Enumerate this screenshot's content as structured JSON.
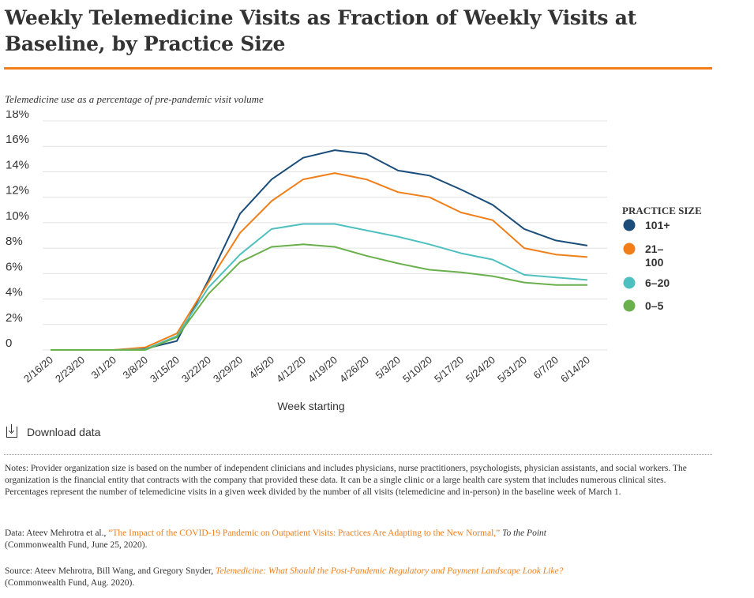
{
  "title": "Weekly Telemedicine Visits as Fraction of Weekly Visits at Baseline, by Practice Size",
  "download_label": "Download data",
  "notes": {
    "text": "Notes: Provider organization size is based on the number of independent clinicians and includes physicians, nurse practitioners, psychologists, physician assistants, and social workers. The organization is the financial entity that contracts with the company that provided these data. It can be a single clinic or a large health care system that includes numerous clinical sites. Percentages represent the number of telemedicine visits in a given week divided by the number of all visits (telemedicine and in-person) in the baseline week of March 1."
  },
  "data_source": {
    "prefix": "Data: Ateev Mehrotra et al., ",
    "link": "“The Impact of the COVID-19 Pandemic on Outpatient Visits: Practices Are Adapting to the New Normal,”",
    "publication": "To the Point",
    "suffix": "(Commonwealth Fund, June 25, 2020)."
  },
  "source": {
    "prefix": "Source: Ateev Mehrotra, Bill Wang, and Gregory Snyder, ",
    "link": "Telemedicine: What Should the Post-Pandemic Regulatory and Payment Landscape Look Like?",
    "suffix": "(Commonwealth Fund, Aug. 2020)."
  },
  "chart_data": {
    "type": "line",
    "subtitle": "Telemedicine use as a percentage of pre-pandemic visit volume",
    "xlabel": "Week starting",
    "ylabel": "",
    "ylim": [
      0,
      18
    ],
    "yticks": [
      0,
      2,
      4,
      6,
      8,
      10,
      12,
      14,
      16,
      18
    ],
    "ytick_labels": [
      "0",
      "2%",
      "4%",
      "6%",
      "8%",
      "10%",
      "12%",
      "14%",
      "16%",
      "18%"
    ],
    "grid": true,
    "legend_title": "PRACTICE SIZE",
    "legend_position": "right",
    "x": [
      "2/16/20",
      "2/23/20",
      "3/1/20",
      "3/8/20",
      "3/15/20",
      "3/22/20",
      "3/29/20",
      "4/5/20",
      "4/12/20",
      "4/19/20",
      "4/26/20",
      "5/3/20",
      "5/10/20",
      "5/17/20",
      "5/24/20",
      "5/31/20",
      "6/7/20",
      "6/14/20"
    ],
    "series": [
      {
        "name": "101+",
        "color": "#1a4d7a",
        "values": [
          0,
          0,
          0,
          0.1,
          0.7,
          5.5,
          10.7,
          13.4,
          15.1,
          15.7,
          15.4,
          14.1,
          13.7,
          12.6,
          11.4,
          9.5,
          8.6,
          8.2
        ]
      },
      {
        "name": "21–100",
        "color": "#f07f1a",
        "values": [
          0,
          0,
          0,
          0.2,
          1.3,
          5.3,
          9.2,
          11.7,
          13.4,
          13.9,
          13.4,
          12.4,
          12.0,
          10.8,
          10.2,
          8.0,
          7.5,
          7.3
        ]
      },
      {
        "name": "6–20",
        "color": "#4fc0c0",
        "values": [
          0,
          0,
          0,
          0.05,
          1.1,
          4.9,
          7.5,
          9.5,
          9.9,
          9.9,
          9.4,
          8.9,
          8.3,
          7.6,
          7.1,
          5.9,
          5.7,
          5.5
        ]
      },
      {
        "name": "0–5",
        "color": "#6ab04c",
        "values": [
          0,
          0,
          0,
          0,
          1.0,
          4.4,
          6.9,
          8.1,
          8.3,
          8.1,
          7.4,
          6.8,
          6.3,
          6.1,
          5.8,
          5.3,
          5.1,
          5.1
        ]
      }
    ]
  }
}
